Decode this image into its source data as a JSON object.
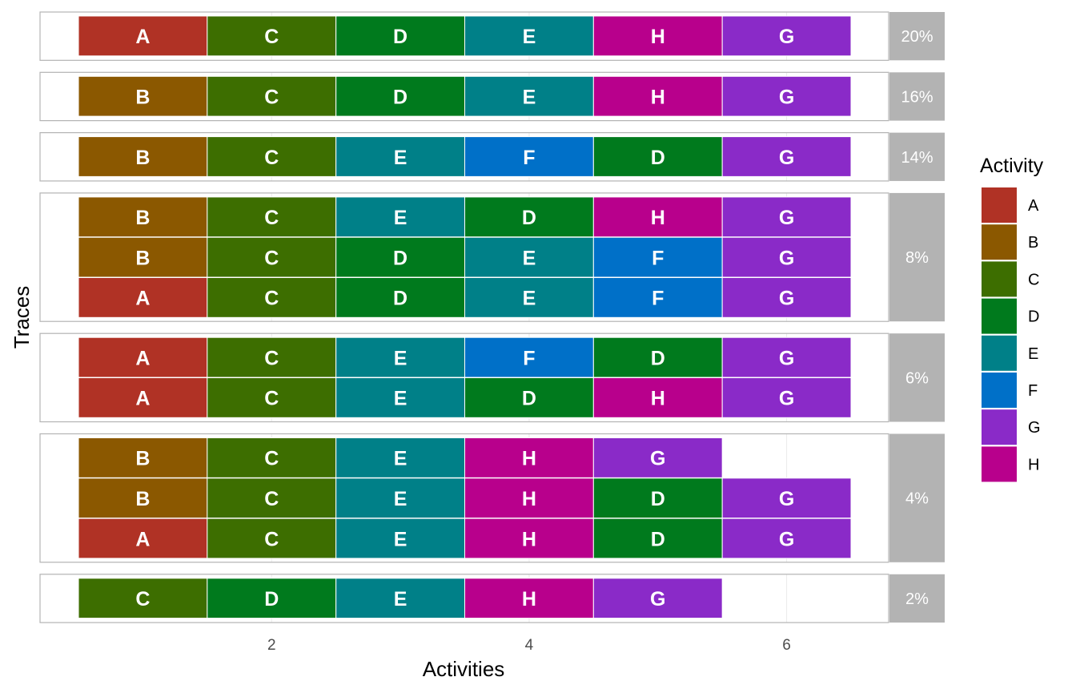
{
  "chart_data": {
    "type": "heatmap",
    "xlabel": "Activities",
    "ylabel": "Traces",
    "xlim": [
      0.3,
      6.8
    ],
    "x_ticks": [
      "2",
      "4",
      "6"
    ],
    "x_tick_values": [
      2,
      4,
      6
    ],
    "legend": {
      "title": "Activity",
      "position": "right",
      "items": [
        {
          "label": "A",
          "color": "#b03225"
        },
        {
          "label": "B",
          "color": "#8b5800"
        },
        {
          "label": "C",
          "color": "#3d6e00"
        },
        {
          "label": "D",
          "color": "#007a1d"
        },
        {
          "label": "E",
          "color": "#008088"
        },
        {
          "label": "F",
          "color": "#0070c8"
        },
        {
          "label": "G",
          "color": "#8a2ac8"
        },
        {
          "label": "H",
          "color": "#b8008c"
        }
      ]
    },
    "facets": [
      {
        "label": "20%",
        "traces": [
          [
            "A",
            "C",
            "D",
            "E",
            "H",
            "G"
          ]
        ]
      },
      {
        "label": "16%",
        "traces": [
          [
            "B",
            "C",
            "D",
            "E",
            "H",
            "G"
          ]
        ]
      },
      {
        "label": "14%",
        "traces": [
          [
            "B",
            "C",
            "E",
            "F",
            "D",
            "G"
          ]
        ]
      },
      {
        "label": "8%",
        "traces": [
          [
            "B",
            "C",
            "E",
            "D",
            "H",
            "G"
          ],
          [
            "B",
            "C",
            "D",
            "E",
            "F",
            "G"
          ],
          [
            "A",
            "C",
            "D",
            "E",
            "F",
            "G"
          ]
        ]
      },
      {
        "label": "6%",
        "traces": [
          [
            "A",
            "C",
            "E",
            "F",
            "D",
            "G"
          ],
          [
            "A",
            "C",
            "E",
            "D",
            "H",
            "G"
          ]
        ]
      },
      {
        "label": "4%",
        "traces": [
          [
            "B",
            "C",
            "E",
            "H",
            "G"
          ],
          [
            "B",
            "C",
            "E",
            "H",
            "D",
            "G"
          ],
          [
            "A",
            "C",
            "E",
            "H",
            "D",
            "G"
          ]
        ]
      },
      {
        "label": "2%",
        "traces": [
          [
            "C",
            "D",
            "E",
            "H",
            "G"
          ]
        ]
      }
    ]
  }
}
